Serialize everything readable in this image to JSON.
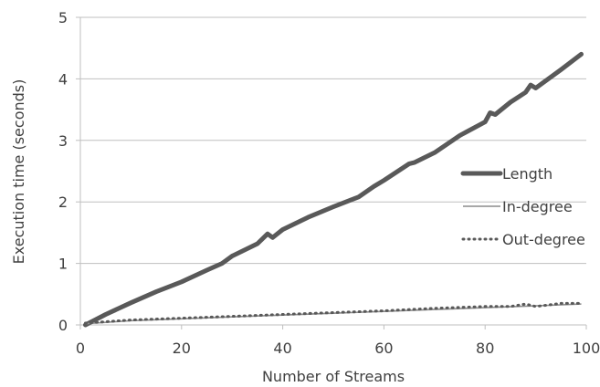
{
  "chart_data": {
    "type": "line",
    "xlabel": "Number of Streams",
    "ylabel": "Execution time (seconds)",
    "xlim": [
      0,
      100
    ],
    "ylim": [
      0,
      5
    ],
    "xticks": [
      "0",
      "20",
      "40",
      "60",
      "80",
      "100"
    ],
    "yticks": [
      "0",
      "1",
      "2",
      "3",
      "4",
      "5"
    ],
    "grid": "horizontal",
    "legend_position": "right",
    "series": [
      {
        "name": "Length",
        "color": "#595959",
        "style": "thick-solid",
        "x": [
          1,
          5,
          10,
          15,
          20,
          25,
          28,
          30,
          35,
          37,
          38,
          40,
          45,
          50,
          55,
          58,
          60,
          65,
          66,
          70,
          75,
          80,
          81,
          82,
          85,
          88,
          89,
          90,
          95,
          99
        ],
        "y": [
          0.0,
          0.17,
          0.36,
          0.54,
          0.7,
          0.89,
          1.0,
          1.12,
          1.32,
          1.48,
          1.42,
          1.55,
          1.75,
          1.92,
          2.08,
          2.25,
          2.35,
          2.62,
          2.64,
          2.8,
          3.08,
          3.3,
          3.45,
          3.42,
          3.62,
          3.78,
          3.9,
          3.85,
          4.15,
          4.4
        ]
      },
      {
        "name": "In-degree",
        "color": "#8c8c8c",
        "style": "thin-solid",
        "x": [
          1,
          10,
          20,
          30,
          40,
          50,
          60,
          70,
          80,
          90,
          99
        ],
        "y": [
          0.02,
          0.07,
          0.1,
          0.13,
          0.16,
          0.19,
          0.22,
          0.25,
          0.28,
          0.31,
          0.34
        ]
      },
      {
        "name": "Out-degree",
        "color": "#595959",
        "style": "dotted",
        "x": [
          1,
          10,
          20,
          30,
          40,
          50,
          60,
          70,
          80,
          85,
          88,
          90,
          95,
          99
        ],
        "y": [
          0.03,
          0.08,
          0.11,
          0.14,
          0.17,
          0.2,
          0.23,
          0.27,
          0.3,
          0.3,
          0.34,
          0.3,
          0.35,
          0.35
        ]
      }
    ]
  }
}
